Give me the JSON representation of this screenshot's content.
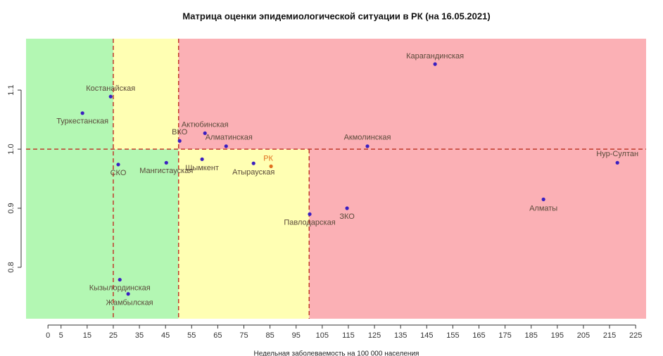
{
  "chart_data": {
    "type": "scatter",
    "title": "Матрица оценки эпидемиологической ситуации в РК (на 16.05.2021)",
    "x_label": "Недельная заболеваемость на 100 000 населения",
    "labels": [
      "Карагандинская",
      "Костанайская",
      "Туркестанская",
      "Актюбинская",
      "ВКО",
      "Акмолинская",
      "Алматинская",
      "Шымкент",
      "Атырауская",
      "РК",
      "Мангистауская",
      "СКО",
      "Нур-Султан",
      "Алматы",
      "ЗКО",
      "Павлодарская",
      "Кызылординская",
      "Жамбылская"
    ],
    "x": [
      148.2,
      24.0,
      13.2,
      60.1,
      50.4,
      122.3,
      68.2,
      59.0,
      78.7,
      85.4,
      45.3,
      26.9,
      218.0,
      189.7,
      114.5,
      100.2,
      27.5,
      30.7
    ],
    "y": [
      1.144,
      1.089,
      1.061,
      1.027,
      1.014,
      1.005,
      1.005,
      0.983,
      0.976,
      0.971,
      0.977,
      0.974,
      0.977,
      0.915,
      0.9,
      0.89,
      0.779,
      0.755
    ],
    "colors": [
      "#3a1fc0",
      "#3a1fc0",
      "#3a1fc0",
      "#3a1fc0",
      "#3a1fc0",
      "#3a1fc0",
      "#3a1fc0",
      "#3a1fc0",
      "#3a1fc0",
      "#e07020",
      "#3a1fc0",
      "#3a1fc0",
      "#3a1fc0",
      "#3a1fc0",
      "#3a1fc0",
      "#3a1fc0",
      "#3a1fc0",
      "#3a1fc0"
    ],
    "xlim": [
      -8.4,
      229
    ],
    "ylim": [
      0.713,
      1.187
    ],
    "xticks": [
      0,
      5,
      15,
      25,
      35,
      45,
      55,
      65,
      75,
      85,
      95,
      105,
      115,
      125,
      135,
      145,
      155,
      165,
      175,
      185,
      195,
      205,
      215,
      225
    ],
    "yticks": [
      0.8,
      0.9,
      {
        "value": 1,
        "label": "1.0"
      },
      1.1
    ],
    "reference_x": [
      25,
      50,
      100
    ],
    "reference_y": 1,
    "zone_colors": {
      "green": "#b3f7b3",
      "yellow": "#ffffb3",
      "red": "#fbb0b5"
    }
  }
}
